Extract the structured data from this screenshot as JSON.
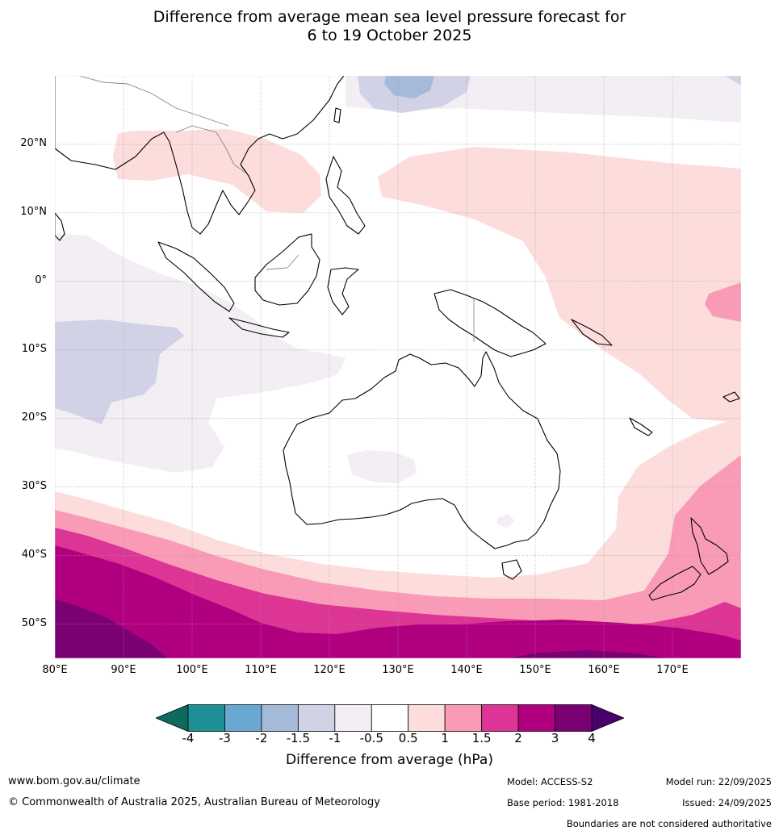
{
  "title": {
    "line1": "Difference from average mean sea level pressure forecast for",
    "line2": "6 to 19 October 2025"
  },
  "lat_labels": [
    {
      "label": "20°N",
      "lat": 20
    },
    {
      "label": "10°N",
      "lat": 10
    },
    {
      "label": "0°",
      "lat": 0
    },
    {
      "label": "10°S",
      "lat": -10
    },
    {
      "label": "20°S",
      "lat": -20
    },
    {
      "label": "30°S",
      "lat": -30
    },
    {
      "label": "40°S",
      "lat": -40
    },
    {
      "label": "50°S",
      "lat": -50
    }
  ],
  "lon_labels": [
    {
      "label": "80°E",
      "lon": 80
    },
    {
      "label": "90°E",
      "lon": 90
    },
    {
      "label": "100°E",
      "lon": 100
    },
    {
      "label": "110°E",
      "lon": 110
    },
    {
      "label": "120°E",
      "lon": 120
    },
    {
      "label": "130°E",
      "lon": 130
    },
    {
      "label": "140°E",
      "lon": 140
    },
    {
      "label": "150°E",
      "lon": 150
    },
    {
      "label": "160°E",
      "lon": 160
    },
    {
      "label": "170°E",
      "lon": 170
    }
  ],
  "map_extent": {
    "lon_min": 80,
    "lon_max": 180,
    "lat_min": -55,
    "lat_max": 30
  },
  "colorbar": {
    "label": "Difference from average (hPa)",
    "ticks": [
      "-4",
      "-3",
      "-2",
      "-1.5",
      "-1",
      "-0.5",
      "0.5",
      "1",
      "1.5",
      "2",
      "3",
      "4"
    ],
    "colors": [
      "#0d6b5e",
      "#1f9196",
      "#69a9d1",
      "#a5b9d9",
      "#d2d2e6",
      "#f2eef4",
      "#ffffff",
      "#fddcdc",
      "#f99bb6",
      "#dc3596",
      "#b1007f",
      "#7a0074",
      "#4a006a"
    ]
  },
  "footer": {
    "website": "www.bom.gov.au/climate",
    "copyright": "© Commonwealth of Australia 2025, Australian Bureau of Meteorology",
    "model": "Model: ACCESS-S2",
    "base_period": "Base period: 1981-2018",
    "model_run": "Model run: 22/09/2025",
    "issued": "Issued: 24/09/2025",
    "disclaimer": "Boundaries are not considered authoritative"
  }
}
